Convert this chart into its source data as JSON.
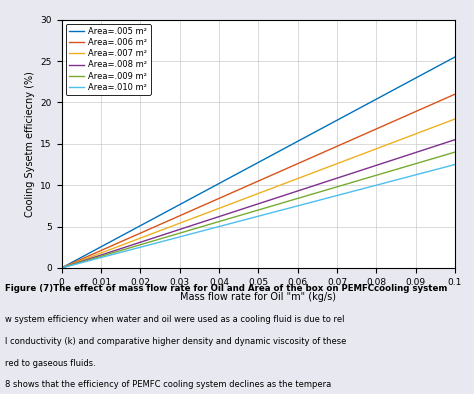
{
  "xlabel": "Mass flow rate for Oil \"m\" (kg/s)",
  "ylabel": "Cooling Sysetm efficiecny (%)",
  "xlim": [
    0,
    0.1
  ],
  "ylim": [
    0,
    30
  ],
  "xticks": [
    0,
    0.01,
    0.02,
    0.03,
    0.04,
    0.05,
    0.06,
    0.07,
    0.08,
    0.09,
    0.1
  ],
  "yticks": [
    0,
    5,
    10,
    15,
    20,
    25,
    30
  ],
  "area_labels": [
    "Area=.005 m²",
    "Area=.006 m²",
    "Area=.007 m²",
    "Area=.008 m²",
    "Area=.009 m²",
    "Area=.010 m²"
  ],
  "colors": [
    "#0072BD",
    "#D95319",
    "#EDB120",
    "#7E2F8E",
    "#77AC30",
    "#4DBEEE"
  ],
  "end_values": [
    25.5,
    21.0,
    18.0,
    15.5,
    14.0,
    12.5
  ],
  "alpha_power": 1.0,
  "figure_caption": "Figure (7)The effect of mass flow rate for Oil and Area of the box on PEMFCcooling system",
  "body_text_lines": [
    "w system efficiency when water and oil were used as a cooling fluid is due to rel",
    "l conductivity (k) and comparative higher density and dynamic viscosity of these",
    "red to gaseous fluids.",
    "8 shows that the efficiency of PEMFC cooling system declines as the tempera"
  ],
  "background_color": "#ffffff",
  "grid_color": "#cccccc",
  "figure_bg": "#ffffff",
  "watermark_color": "#e8e8f0"
}
